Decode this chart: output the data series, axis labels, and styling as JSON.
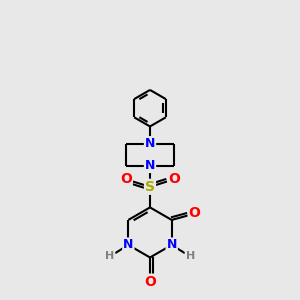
{
  "background_color": "#e8e8e8",
  "bond_color": "#000000",
  "bond_width": 1.5,
  "atom_colors": {
    "N": "#0000ff",
    "O": "#ff0000",
    "S": "#aaaa00",
    "C": "#000000",
    "H": "#808080"
  }
}
